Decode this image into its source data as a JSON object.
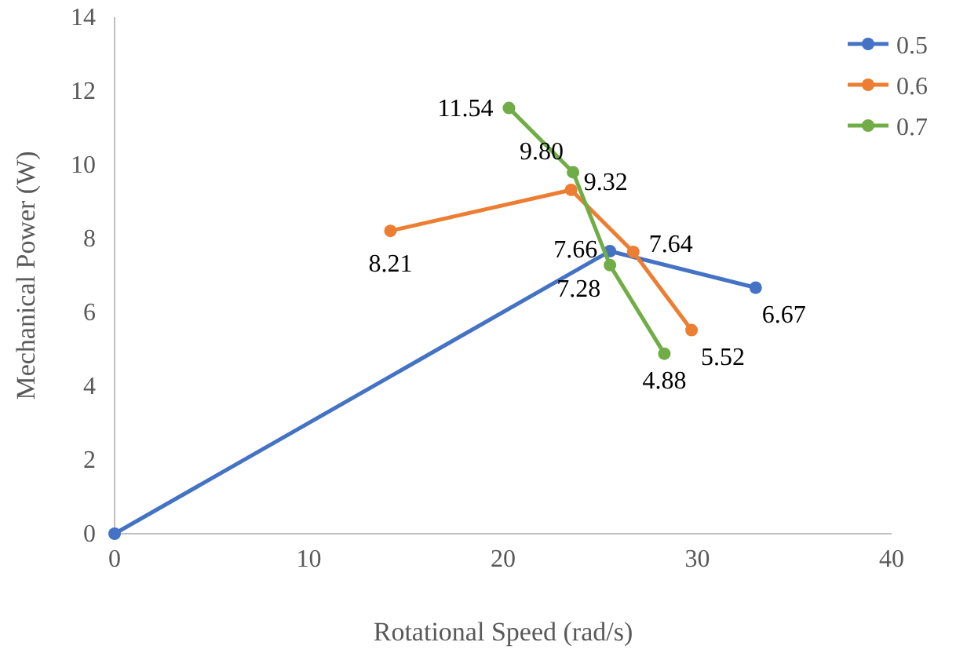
{
  "chart_data": {
    "type": "line",
    "xlabel": "Rotational Speed (rad/s)",
    "ylabel": "Mechanical Power (W)",
    "xlim": [
      0,
      40
    ],
    "xticks": [
      0,
      10,
      20,
      30,
      40
    ],
    "ylim": [
      0,
      14
    ],
    "yticks": [
      0,
      2,
      4,
      6,
      8,
      10,
      12,
      14
    ],
    "grid": false,
    "legend": "top right",
    "marker": "circle",
    "line_style": "solid",
    "series": [
      {
        "name": "0.5",
        "color": "#4472c4",
        "x": [
          0,
          25.5,
          33.0
        ],
        "values": [
          0,
          7.66,
          6.67
        ],
        "value_labels": [
          null,
          "7.66",
          "6.67"
        ]
      },
      {
        "name": "0.6",
        "color": "#ed7d31",
        "x": [
          14.2,
          23.5,
          26.7,
          29.7
        ],
        "values": [
          8.21,
          9.32,
          7.64,
          5.52
        ],
        "value_labels": [
          "8.21",
          "9.32",
          "7.64",
          "5.52"
        ]
      },
      {
        "name": "0.7",
        "color": "#70ad47",
        "x": [
          20.3,
          23.6,
          25.5,
          28.3
        ],
        "values": [
          11.54,
          9.8,
          7.28,
          4.88
        ],
        "value_labels": [
          "11.54",
          "9.80",
          "7.28",
          "4.88"
        ]
      }
    ]
  }
}
